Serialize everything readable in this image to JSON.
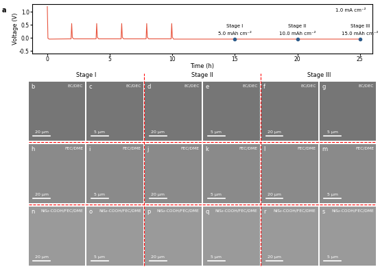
{
  "chart_data": {
    "type": "line",
    "panel_letter": "a",
    "x_label": "Time (h)",
    "y_label": "Voltage (V)",
    "x": [
      0,
      0.05,
      0.15,
      1.9,
      1.95,
      2.0,
      2.1,
      3.9,
      3.95,
      4.0,
      4.1,
      5.9,
      5.95,
      6.0,
      6.1,
      7.9,
      7.95,
      8.0,
      8.1,
      9.9,
      9.95,
      10.0,
      10.1,
      25
    ],
    "series": [
      {
        "name": "voltage",
        "color": "#e8553f",
        "values": [
          1.2,
          -0.02,
          -0.05,
          -0.04,
          0.55,
          0.02,
          -0.04,
          -0.04,
          0.55,
          0.02,
          -0.04,
          -0.04,
          0.55,
          0.02,
          -0.04,
          -0.04,
          0.55,
          0.02,
          -0.04,
          -0.04,
          0.55,
          0.02,
          -0.05,
          -0.05
        ]
      }
    ],
    "current_density": "1.0 mA cm⁻²",
    "stages": [
      {
        "name": "Stage I",
        "capacity": "5.0 mAh cm⁻²",
        "x": 15,
        "y": -0.05
      },
      {
        "name": "Stage II",
        "capacity": "10.0 mAh cm⁻²",
        "x": 20,
        "y": -0.05
      },
      {
        "name": "Stage III",
        "capacity": "15.0 mAh cm⁻²",
        "x": 25,
        "y": -0.05
      }
    ],
    "stage_color": "#2e5c8a",
    "xlim": [
      -1.2,
      26
    ],
    "ylim": [
      -0.6,
      1.3
    ],
    "xticks": [
      0,
      5,
      10,
      15,
      20,
      25
    ],
    "yticks": [
      -0.5,
      0.0,
      0.5,
      1.0
    ],
    "grid": false
  },
  "images": {
    "stage_headers": [
      "Stage I",
      "Stage II",
      "Stage III"
    ],
    "rows": [
      {
        "label": "EC/DEC",
        "panels": [
          {
            "letter": "b",
            "scale_bar": "20 µm"
          },
          {
            "letter": "c",
            "scale_bar": "5 µm"
          },
          {
            "letter": "d",
            "scale_bar": "20 µm"
          },
          {
            "letter": "e",
            "scale_bar": "5 µm"
          },
          {
            "letter": "f",
            "scale_bar": "20 µm"
          },
          {
            "letter": "g",
            "scale_bar": "5 µm"
          }
        ]
      },
      {
        "label": "FEC/DME",
        "panels": [
          {
            "letter": "h",
            "scale_bar": "20 µm"
          },
          {
            "letter": "i",
            "scale_bar": "5 µm"
          },
          {
            "letter": "j",
            "scale_bar": "20 µm"
          },
          {
            "letter": "k",
            "scale_bar": "5 µm"
          },
          {
            "letter": "l",
            "scale_bar": "20 µm"
          },
          {
            "letter": "m",
            "scale_bar": "5 µm"
          }
        ]
      },
      {
        "label": "NiS₂-COOH/FEC/DME",
        "panels": [
          {
            "letter": "n",
            "scale_bar": "20 µm"
          },
          {
            "letter": "o",
            "scale_bar": "5 µm"
          },
          {
            "letter": "p",
            "scale_bar": "20 µm"
          },
          {
            "letter": "q",
            "scale_bar": "5 µm"
          },
          {
            "letter": "r",
            "scale_bar": "20 µm"
          },
          {
            "letter": "s",
            "scale_bar": "5 µm"
          }
        ]
      }
    ]
  }
}
